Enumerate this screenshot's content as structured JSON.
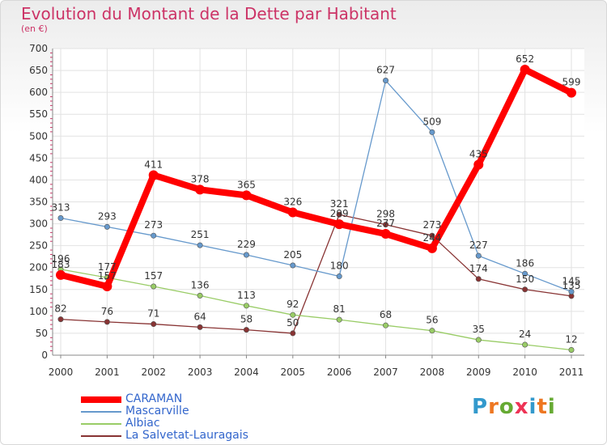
{
  "title": "Evolution du Montant de la Dette par Habitant",
  "subtitle": "(en €)",
  "logo": {
    "letters": [
      "P",
      "r",
      "o",
      "x",
      "i",
      "t",
      "i"
    ],
    "colors": [
      "#3399cc",
      "#ee7722",
      "#66aa33",
      "#ee3355",
      "#3399cc",
      "#ee7722",
      "#66aa33"
    ]
  },
  "chart_data": {
    "type": "line",
    "x": [
      "2000",
      "2001",
      "2002",
      "2003",
      "2004",
      "2005",
      "2006",
      "2007",
      "2008",
      "2009",
      "2010",
      "2011"
    ],
    "ylim": [
      0,
      700
    ],
    "yticks": [
      "0",
      "50",
      "100",
      "150",
      "200",
      "250",
      "300",
      "350",
      "400",
      "450",
      "500",
      "550",
      "600",
      "650",
      "700"
    ],
    "grid": true,
    "legend_position": "bottom-left",
    "series": [
      {
        "name": "CARAMAN",
        "color": "#ff0000",
        "values": [
          183,
          157,
          411,
          378,
          365,
          326,
          299,
          277,
          244,
          435,
          652,
          599
        ],
        "labels": [
          "183",
          "157",
          "411",
          "378",
          "365",
          "326",
          "299",
          "277",
          "244",
          "435",
          "652",
          "599"
        ]
      },
      {
        "name": "Mascarville",
        "color": "#6699cc",
        "values": [
          313,
          293,
          273,
          251,
          229,
          205,
          180,
          627,
          509,
          227,
          186,
          145
        ],
        "labels": [
          "313",
          "293",
          "273",
          "251",
          "229",
          "205",
          "180",
          "627",
          "509",
          "227",
          "186",
          "145"
        ]
      },
      {
        "name": "Albiac",
        "color": "#99cc66",
        "values": [
          196,
          177,
          157,
          136,
          113,
          92,
          81,
          68,
          56,
          35,
          24,
          12
        ],
        "labels": [
          "196",
          "177",
          "157",
          "136",
          "113",
          "92",
          "81",
          "68",
          "56",
          "35",
          "24",
          "12"
        ]
      },
      {
        "name": "La Salvetat-Lauragais",
        "color": "#883333",
        "values": [
          82,
          76,
          71,
          64,
          58,
          50,
          321,
          298,
          273,
          174,
          150,
          135
        ],
        "labels": [
          "82",
          "76",
          "71",
          "64",
          "58",
          "50",
          "321",
          "298",
          "273",
          "174",
          "150",
          "135"
        ]
      }
    ]
  }
}
